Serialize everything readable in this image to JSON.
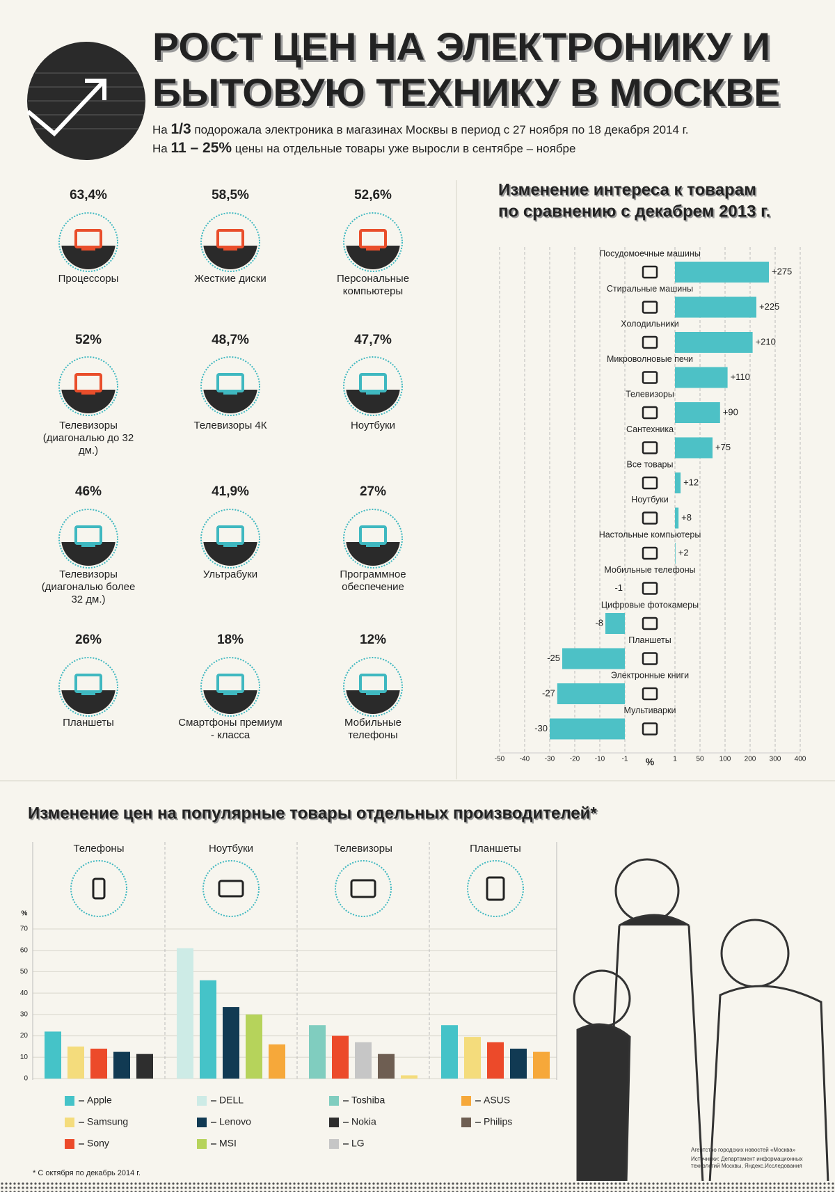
{
  "header": {
    "title": [
      "РОСТ ЦЕН НА ЭЛЕКТРОНИКУ И",
      "БЫТОВУЮ ТЕХНИКУ В МОСКВЕ"
    ],
    "lines": [
      [
        "На ",
        "1/3",
        " подорожала электроника в магазинах Москвы в период с 27 ноября по 18 декабря 2014 г."
      ],
      [
        "На ",
        "11 – 25%",
        " цены на отдельные товары уже выросли в сентябре – ноябре"
      ]
    ]
  },
  "price_rise": {
    "items": [
      {
        "value": "63,4%",
        "label": "Процессоры",
        "color": "#e94e2b"
      },
      {
        "value": "58,5%",
        "label": "Жесткие диски",
        "color": "#e94e2b"
      },
      {
        "value": "52,6%",
        "label": "Персональные компьютеры",
        "color": "#e94e2b"
      },
      {
        "value": "52%",
        "label": "Телевизоры (диагональю до 32 дм.)",
        "color": "#e94e2b"
      },
      {
        "value": "48,7%",
        "label": "Телевизоры 4К",
        "color": "#3fb8c0"
      },
      {
        "value": "47,7%",
        "label": "Ноутбуки",
        "color": "#3fb8c0"
      },
      {
        "value": "46%",
        "label": "Телевизоры (диагональю более 32 дм.)",
        "color": "#3fb8c0"
      },
      {
        "value": "41,9%",
        "label": "Ультрабуки",
        "color": "#3fb8c0"
      },
      {
        "value": "27%",
        "label": "Программное обеспечение",
        "color": "#3fb8c0"
      },
      {
        "value": "26%",
        "label": "Планшеты",
        "color": "#3fb8c0"
      },
      {
        "value": "18%",
        "label": "Смартфоны премиум - класса",
        "color": "#3fb8c0"
      },
      {
        "value": "12%",
        "label": "Мобильные телефоны",
        "color": "#3fb8c0"
      }
    ]
  },
  "chart_data": [
    {
      "type": "hbar",
      "title": [
        "Изменение интереса к товарам",
        "по сравнению с декабрем 2013 г."
      ],
      "categories": [
        "Посудомоечные машины",
        "Стиральные машины",
        "Холодильники",
        "Микроволновые печи",
        "Телевизоры",
        "Сантехника",
        "Все товары",
        "Ноутбуки",
        "Настольные компьютеры",
        "Мобильные телефоны",
        "Цифровые фотокамеры",
        "Планшеты",
        "Электронные книги",
        "Мультиварки"
      ],
      "values": [
        275,
        225,
        210,
        110,
        90,
        75,
        12,
        8,
        2,
        -1,
        -8,
        -25,
        -27,
        -30
      ],
      "value_labels": [
        "+275",
        "+225",
        "+210",
        "+110",
        "+90",
        "+75",
        "+12",
        "+8",
        "+2",
        "-1",
        "-8",
        "-25",
        "-27",
        "-30"
      ],
      "color": "#4dc1c6",
      "xlim": [
        -50,
        400
      ],
      "xticks": [
        -50,
        -40,
        -30,
        -20,
        -10,
        -1,
        1,
        50,
        100,
        200,
        300,
        400
      ],
      "xlabel": "%",
      "grid": true
    },
    {
      "type": "bar",
      "title": "Изменение цен на популярные товары отдельных производителей*",
      "categories": [
        "Телефоны",
        "Ноутбуки",
        "Телевизоры",
        "Планшеты"
      ],
      "ylabel": "%",
      "ylim": [
        0,
        70
      ],
      "yticks": [
        0,
        10,
        20,
        30,
        40,
        50,
        60,
        70
      ],
      "grid": true,
      "series": [
        {
          "name": "Apple",
          "color": "#45c3c8",
          "values": [
            22,
            46,
            null,
            25
          ]
        },
        {
          "name": "Samsung",
          "color": "#f4dc7c",
          "values": [
            15,
            null,
            1.5,
            19.5
          ]
        },
        {
          "name": "Sony",
          "color": "#ec4a2a",
          "values": [
            14,
            null,
            20,
            17
          ]
        },
        {
          "name": "DELL",
          "color": "#cdebe6",
          "values": [
            null,
            61,
            null,
            null
          ]
        },
        {
          "name": "Lenovo",
          "color": "#113a53",
          "values": [
            12.5,
            33.5,
            null,
            14
          ]
        },
        {
          "name": "MSI",
          "color": "#b6d35b",
          "values": [
            null,
            30,
            null,
            null
          ]
        },
        {
          "name": "Toshiba",
          "color": "#80cdbf",
          "values": [
            null,
            null,
            25,
            null
          ]
        },
        {
          "name": "Nokia",
          "color": "#2e2e2e",
          "values": [
            11.5,
            null,
            null,
            null
          ]
        },
        {
          "name": "LG",
          "color": "#c6c6c6",
          "values": [
            null,
            null,
            17,
            null
          ]
        },
        {
          "name": "ASUS",
          "color": "#f6a83a",
          "values": [
            null,
            16,
            null,
            12.5
          ]
        },
        {
          "name": "Philips",
          "color": "#6e5e52",
          "values": [
            null,
            null,
            11.5,
            null
          ]
        }
      ]
    }
  ],
  "footnote": "* С октября по декабрь 2014 г.",
  "credits": [
    "Агентство городских новостей «Москва»",
    "Источники: Департамент информационных технологий Москвы, Яндекс.Исследования"
  ]
}
